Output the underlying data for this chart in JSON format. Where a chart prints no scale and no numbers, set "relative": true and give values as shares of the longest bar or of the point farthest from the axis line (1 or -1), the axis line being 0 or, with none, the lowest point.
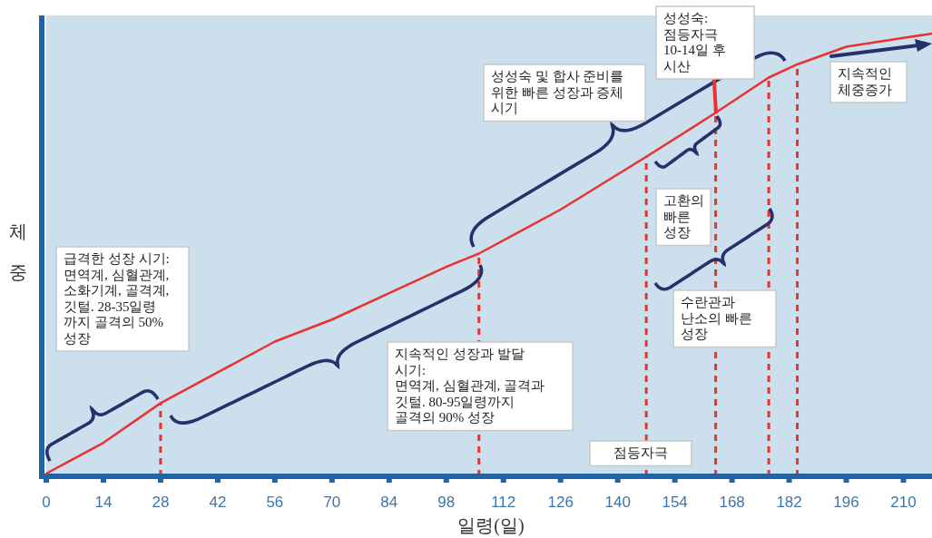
{
  "chart_data": {
    "type": "line",
    "xlabel": "일령(일)",
    "ylabel": "체중",
    "relative": true,
    "x": [
      0,
      14,
      28,
      42,
      56,
      70,
      84,
      98,
      106,
      126,
      147,
      164,
      177,
      184,
      196,
      210,
      217
    ],
    "series": [
      {
        "color": "#e8322e",
        "values": [
          0,
          0.07,
          0.16,
          0.23,
          0.3,
          0.35,
          0.41,
          0.47,
          0.5,
          0.6,
          0.72,
          0.82,
          0.9,
          0.93,
          0.97,
          0.99,
          1
        ]
      }
    ],
    "xlim": [
      0,
      217
    ],
    "xticks": [
      0,
      14,
      28,
      42,
      56,
      70,
      84,
      98,
      112,
      126,
      140,
      154,
      168,
      182,
      196,
      210
    ],
    "ref_lines": [
      {
        "axis": "x",
        "value": 28,
        "color": "#e8322e",
        "line_style": "dashed"
      },
      {
        "axis": "x",
        "value": 106,
        "color": "#e8322e",
        "line_style": "dashed"
      },
      {
        "axis": "x",
        "value": 147,
        "color": "#e8322e",
        "line_style": "dashed"
      },
      {
        "axis": "x",
        "value": 164,
        "color": "#e8322e",
        "line_style": "dashed"
      },
      {
        "axis": "x",
        "value": 177,
        "color": "#e8322e",
        "line_style": "dashed"
      },
      {
        "axis": "x",
        "value": 184,
        "color": "#e8322e",
        "line_style": "dashed"
      }
    ],
    "annotations": [
      "급격한 성장 시기:\n면역계, 심혈관계,\n소화기계, 골격계,\n깃털. 28-35일령\n까지 골격의 50%\n성장",
      "지속적인 성장과 발달\n시기:\n면역계, 심혈관계, 골격과\n깃털. 80-95일령까지\n골격의 90% 성장",
      "성성숙 및 합사 준비를\n위한 빠른 성장과 증체\n시기",
      "성성숙:\n점등자극\n10-14일 후\n시산",
      "지속적인\n체중증가",
      "고환의\n빠른\n성장",
      "수란관과\n난소의 빠른\n성장",
      "점등자극"
    ]
  }
}
